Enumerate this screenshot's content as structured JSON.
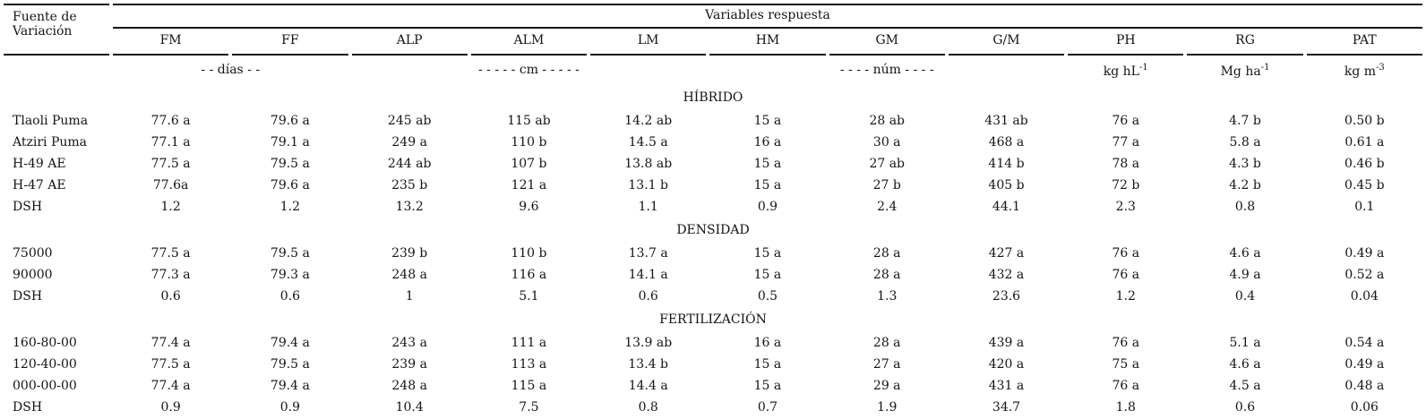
{
  "table": {
    "corner": {
      "line1": "Fuente de",
      "line2": "Variación"
    },
    "group_header": "Variables respuesta",
    "columns": [
      "FM",
      "FF",
      "ALP",
      "ALM",
      "LM",
      "HM",
      "GM",
      "G/M",
      "PH",
      "RG",
      "PAT"
    ],
    "units": {
      "dias": "- - días - -",
      "cm": "- - - - -  cm  - - - - -",
      "num": "- - - -  núm  - - - -",
      "ph": {
        "base": "kg hL",
        "sup": "-1"
      },
      "rg": {
        "base": "Mg ha",
        "sup": "-1"
      },
      "pat": {
        "base": "kg m",
        "sup": "-3"
      }
    },
    "sections": [
      {
        "title": "HÍBRIDO",
        "rows": [
          {
            "label": "Tlaoli Puma",
            "values": [
              "77.6 a",
              "79.6 a",
              "245 ab",
              "115 ab",
              "14.2 ab",
              "15 a",
              "28 ab",
              "431 ab",
              "76 a",
              "4.7 b",
              "0.50 b"
            ]
          },
          {
            "label": "Atziri Puma",
            "values": [
              "77.1 a",
              "79.1 a",
              "249 a",
              "110 b",
              "14.5 a",
              "16 a",
              "30 a",
              "468 a",
              "77 a",
              "5.8 a",
              "0.61 a"
            ]
          },
          {
            "label": "H-49 AE",
            "values": [
              "77.5 a",
              "79.5 a",
              "244 ab",
              "107 b",
              "13.8 ab",
              "15 a",
              "27 ab",
              "414 b",
              "78 a",
              "4.3 b",
              "0.46 b"
            ]
          },
          {
            "label": "H-47 AE",
            "values": [
              "77.6a",
              "79.6 a",
              "235 b",
              "121 a",
              "13.1 b",
              "15 a",
              "27 b",
              "405 b",
              "72 b",
              "4.2 b",
              "0.45 b"
            ]
          },
          {
            "label": "DSH",
            "values": [
              "1.2",
              "1.2",
              "13.2",
              "9.6",
              "1.1",
              "0.9",
              "2.4",
              "44.1",
              "2.3",
              "0.8",
              "0.1"
            ]
          }
        ]
      },
      {
        "title": "DENSIDAD",
        "rows": [
          {
            "label": "75000",
            "values": [
              "77.5 a",
              "79.5 a",
              "239 b",
              "110 b",
              "13.7 a",
              "15 a",
              "28 a",
              "427 a",
              "76 a",
              "4.6 a",
              "0.49 a"
            ]
          },
          {
            "label": "90000",
            "values": [
              "77.3 a",
              "79.3 a",
              "248 a",
              "116 a",
              "14.1 a",
              "15 a",
              "28 a",
              "432 a",
              "76 a",
              "4.9 a",
              "0.52 a"
            ]
          },
          {
            "label": "DSH",
            "values": [
              "0.6",
              "0.6",
              "1",
              "5.1",
              "0.6",
              "0.5",
              "1.3",
              "23.6",
              "1.2",
              "0.4",
              "0.04"
            ]
          }
        ]
      },
      {
        "title": "FERTILIZACIÓN",
        "rows": [
          {
            "label": "160-80-00",
            "values": [
              "77.4 a",
              "79.4 a",
              "243 a",
              "111 a",
              "13.9 ab",
              "16 a",
              "28 a",
              "439 a",
              "76 a",
              "5.1 a",
              "0.54 a"
            ]
          },
          {
            "label": "120-40-00",
            "values": [
              "77.5 a",
              "79.5 a",
              "239 a",
              "113 a",
              "13.4 b",
              "15 a",
              "27 a",
              "420 a",
              "75 a",
              "4.6 a",
              "0.49 a"
            ]
          },
          {
            "label": "000-00-00",
            "values": [
              "77.4 a",
              "79.4 a",
              "248 a",
              "115 a",
              "14.4 a",
              "15 a",
              "29 a",
              "431 a",
              "76 a",
              "4.5 a",
              "0.48 a"
            ]
          },
          {
            "label": "DSH",
            "values": [
              "0.9",
              "0.9",
              "10.4",
              "7.5",
              "0.8",
              "0.7",
              "1.9",
              "34.7",
              "1.8",
              "0.6",
              "0.06"
            ]
          }
        ]
      }
    ]
  }
}
